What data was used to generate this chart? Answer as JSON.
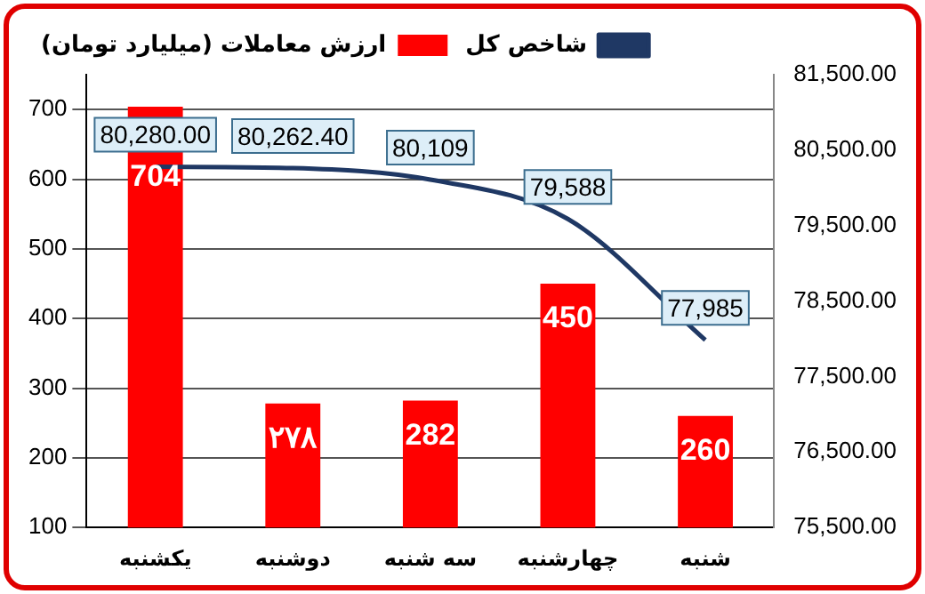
{
  "chart_data": {
    "type": "bar",
    "categories": [
      "یکشنبه",
      "دوشنبه",
      "سه شنبه",
      "چهارشنبه",
      "شنبه"
    ],
    "series": [
      {
        "name": "ارزش معاملات (میلیارد تومان)",
        "color": "#ff0000",
        "values": [
          704,
          278,
          282,
          450,
          260
        ],
        "value_labels": [
          "704",
          "۲۷۸",
          "282",
          "450",
          "260"
        ]
      },
      {
        "name": "شاخص کل",
        "type": "line",
        "axis": "y2",
        "color": "#1f3864",
        "values": [
          80280.0,
          80262.4,
          80109,
          79588,
          77985
        ],
        "value_labels": [
          "80,280.00",
          "80,262.40",
          "80,109",
          "79,588",
          "77,985"
        ]
      }
    ],
    "ylim": [
      100,
      750
    ],
    "yticks": [
      100,
      200,
      300,
      400,
      500,
      600,
      700
    ],
    "y2lim": [
      75500,
      81500
    ],
    "y2ticks": [
      {
        "value": 75500,
        "label": "75,500.00"
      },
      {
        "value": 76500,
        "label": "76,500.00"
      },
      {
        "value": 77500,
        "label": "77,500.00"
      },
      {
        "value": 78500,
        "label": "78,500.00"
      },
      {
        "value": 79500,
        "label": "79,500.00"
      },
      {
        "value": 80500,
        "label": "80,500.00"
      },
      {
        "value": 81500,
        "label": "81,500.00"
      }
    ],
    "grid": "y",
    "legend": "top left",
    "marker": "none"
  }
}
